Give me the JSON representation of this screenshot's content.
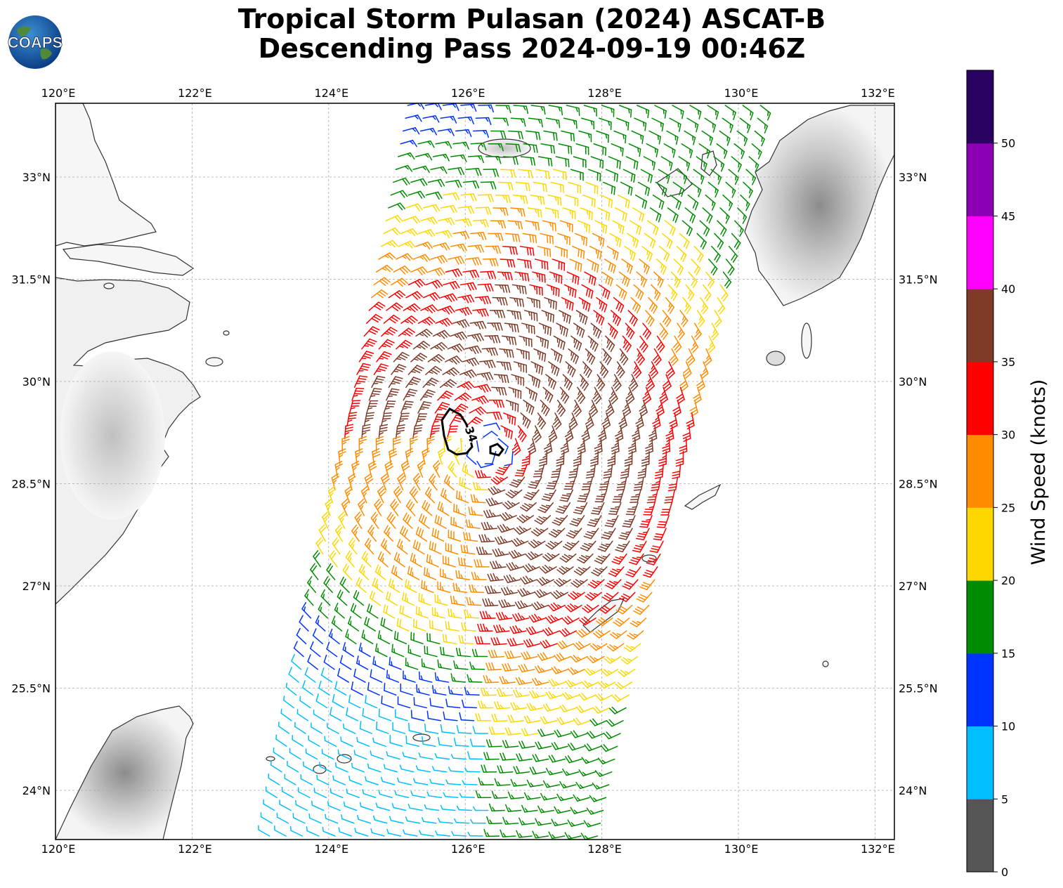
{
  "header": {
    "title_line1": "Tropical Storm Pulasan (2024) ASCAT-B",
    "title_line2": "Descending Pass 2024-09-19 00:46Z"
  },
  "logo": {
    "text": "COAPS",
    "icon": "globe-logo-icon"
  },
  "map": {
    "lon_ticks": [
      "120°E",
      "122°E",
      "124°E",
      "126°E",
      "128°E",
      "130°E",
      "132°E"
    ],
    "lat_ticks": [
      "33°N",
      "31.5°N",
      "30°N",
      "28.5°N",
      "27°N",
      "25.5°N",
      "24°N"
    ],
    "lon_values": [
      120,
      122,
      124,
      126,
      128,
      130,
      132
    ],
    "lat_values": [
      33,
      31.5,
      30,
      28.5,
      27,
      25.5,
      24
    ],
    "extent": {
      "lon_min": 120,
      "lon_max": 132.25,
      "lat_min": 23.3,
      "lat_max": 34.1
    },
    "contour_label": "34",
    "storm_center": {
      "lon": 126.35,
      "lat": 29.0
    }
  },
  "colorbar": {
    "label": "Wind Speed (knots)",
    "ticks": [
      "0",
      "5",
      "10",
      "15",
      "20",
      "25",
      "30",
      "35",
      "40",
      "45",
      "50"
    ],
    "bins": [
      {
        "min": 0,
        "max": 5,
        "color": "#555555"
      },
      {
        "min": 5,
        "max": 10,
        "color": "#00bfff"
      },
      {
        "min": 10,
        "max": 15,
        "color": "#0033ff"
      },
      {
        "min": 15,
        "max": 20,
        "color": "#008c00"
      },
      {
        "min": 20,
        "max": 25,
        "color": "#ffd700"
      },
      {
        "min": 25,
        "max": 30,
        "color": "#ff8c00"
      },
      {
        "min": 30,
        "max": 35,
        "color": "#ff0000"
      },
      {
        "min": 35,
        "max": 40,
        "color": "#7f3a28"
      },
      {
        "min": 40,
        "max": 45,
        "color": "#ff00ff"
      },
      {
        "min": 45,
        "max": 50,
        "color": "#8b00b5"
      },
      {
        "min": 50,
        "max": 55,
        "color": "#2a0060"
      }
    ]
  }
}
